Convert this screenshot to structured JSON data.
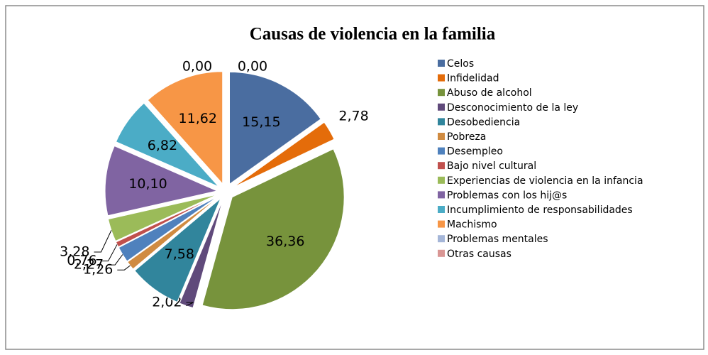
{
  "chart_data": {
    "type": "pie",
    "title": "Causas de violencia en la familia",
    "categories": [
      "Celos",
      "Infidelidad",
      "Abuso de alcohol",
      "Desconocimiento de la ley",
      "Desobediencia",
      "Pobreza",
      "Desempleo",
      "Bajo nivel cultural",
      "Experiencias de violencia en la infancia",
      "Problemas con los hij@s",
      "Incumplimiento de responsabilidades",
      "Machismo",
      "Problemas mentales",
      "Otras causas"
    ],
    "values": [
      15.15,
      2.78,
      36.36,
      2.02,
      7.58,
      1.26,
      2.27,
      0.76,
      3.28,
      10.1,
      6.82,
      11.62,
      0.0,
      0.0
    ],
    "value_labels": [
      "15,15",
      "2,78",
      "36,36",
      "2,02",
      "7,58",
      "1,26",
      "2,27",
      "0,76",
      "3,28",
      "10,10",
      "6,82",
      "11,62",
      "0,00",
      "0,00"
    ],
    "colors": [
      "#4a6da0",
      "#e46c0a",
      "#77933c",
      "#604a7b",
      "#31859c",
      "#d08b41",
      "#4f81bd",
      "#c0504d",
      "#9bbb59",
      "#8064a2",
      "#4bacc6",
      "#f79646",
      "#a5b6d8",
      "#d99694"
    ],
    "legend": "right"
  }
}
